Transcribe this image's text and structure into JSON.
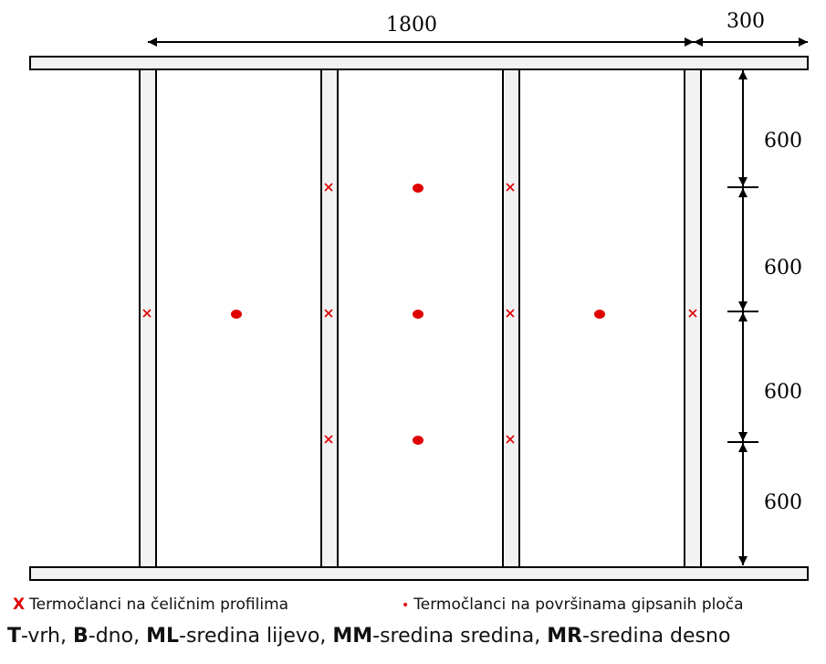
{
  "dimensions": {
    "top_span": "1800",
    "top_overhang": "300",
    "v1": "600",
    "v2": "600",
    "v3": "600",
    "v4": "600"
  },
  "legend": {
    "steel_marker": "X",
    "steel_text": "Termočlanci na čeličnim profilima",
    "gypsum_marker": "•",
    "gypsum_text": "Termočlanci na površinama gipsanih ploča"
  },
  "abbreviations": [
    {
      "code": "T",
      "desc": "-vrh",
      "sep": ", "
    },
    {
      "code": "B",
      "desc": "-dno",
      "sep": ", "
    },
    {
      "code": "ML",
      "desc": "-sredina lijevo",
      "sep": ", "
    },
    {
      "code": "MM",
      "desc": "-sredina sredina",
      "sep": ", "
    },
    {
      "code": "MR",
      "desc": "-sredina desno",
      "sep": ""
    }
  ],
  "colors": {
    "marker": "#e00000",
    "frame_fill": "#f2f2f2",
    "line": "#000000"
  }
}
